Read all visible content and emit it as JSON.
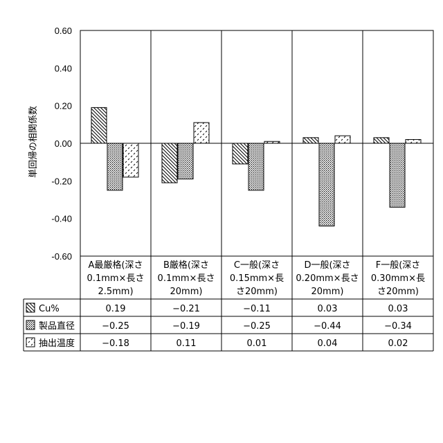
{
  "chart_data": {
    "type": "bar",
    "title": "",
    "ylabel": "単回帰の相関係数",
    "xlabel": "",
    "ylim": [
      -0.6,
      0.6
    ],
    "y_ticks": [
      "0.60",
      "0.40",
      "0.20",
      "0.00",
      "-0.20",
      "-0.40",
      "-0.60"
    ],
    "grid": "vertical",
    "legend": "table-left",
    "categories": [
      [
        "A最厳格(深さ",
        "0.1mm×長さ",
        "2.5mm)"
      ],
      [
        "B厳格(深さ",
        "0.1mm×長さ",
        "20mm)"
      ],
      [
        "C一般(深さ",
        "0.15mm×長",
        "さ20mm)"
      ],
      [
        "D一般(深さ",
        "0.20mm×長さ",
        "20mm)"
      ],
      [
        "F一般(深さ",
        "0.30mm×長",
        "さ20mm)"
      ]
    ],
    "series": [
      {
        "name": "Cu%",
        "pattern": "diagonal",
        "values": [
          0.19,
          -0.21,
          -0.11,
          0.03,
          0.03
        ],
        "value_labels": [
          "0.19",
          "−0.21",
          "−0.11",
          "0.03",
          "0.03"
        ]
      },
      {
        "name": "製品直径",
        "pattern": "dots",
        "values": [
          -0.25,
          -0.19,
          -0.25,
          -0.44,
          -0.34
        ],
        "value_labels": [
          "−0.25",
          "−0.19",
          "−0.25",
          "−0.44",
          "−0.34"
        ]
      },
      {
        "name": "抽出温度",
        "pattern": "dashes",
        "values": [
          -0.18,
          0.11,
          0.01,
          0.04,
          0.02
        ],
        "value_labels": [
          "−0.18",
          "0.11",
          "0.01",
          "0.04",
          "0.02"
        ]
      }
    ]
  }
}
